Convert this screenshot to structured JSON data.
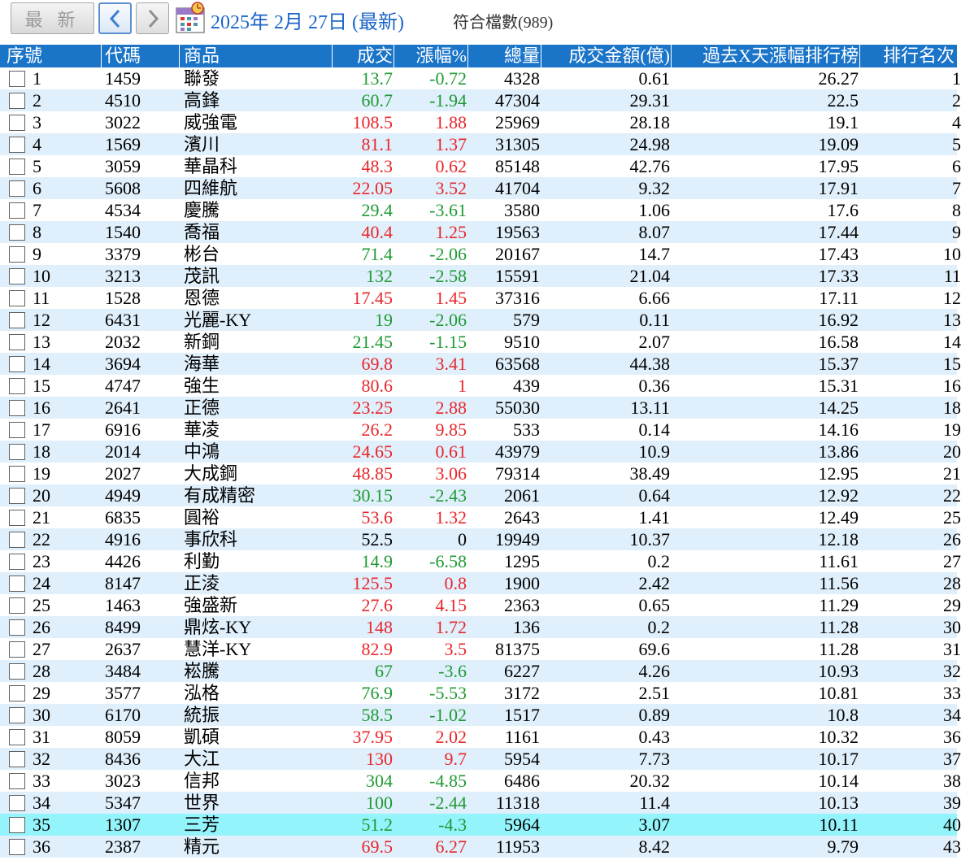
{
  "toolbar": {
    "latest_label": "最 新",
    "prev_icon": "chevron-left-icon",
    "next_icon": "chevron-right-icon",
    "calendar_icon": "calendar-icon",
    "date_label": "2025年  2月 27日 (最新)",
    "match_count_label": "符合檔數(989)"
  },
  "colors": {
    "header_bg": "#1a74c8",
    "up": "#e8262b",
    "down": "#1e9a33",
    "row_alt": "#dfeffb",
    "row_selected": "#93f4fb",
    "date_text": "#1c66c8"
  },
  "table": {
    "headers": [
      "序號",
      "代碼",
      "商品",
      "成交",
      "漲幅%",
      "總量",
      "成交金額(億)",
      "過去X天漲幅排行榜",
      "排行名次"
    ],
    "selected_row_index": 34,
    "rows": [
      {
        "seq": "1",
        "code": "1459",
        "name": "聯發",
        "price": "13.7",
        "change": "-0.72",
        "volume": "4328",
        "amount": "0.61",
        "xday": "26.27",
        "rank": "1",
        "dir": "down"
      },
      {
        "seq": "2",
        "code": "4510",
        "name": "高鋒",
        "price": "60.7",
        "change": "-1.94",
        "volume": "47304",
        "amount": "29.31",
        "xday": "22.5",
        "rank": "2",
        "dir": "down"
      },
      {
        "seq": "3",
        "code": "3022",
        "name": "威強電",
        "price": "108.5",
        "change": "1.88",
        "volume": "25969",
        "amount": "28.18",
        "xday": "19.1",
        "rank": "4",
        "dir": "up"
      },
      {
        "seq": "4",
        "code": "1569",
        "name": "濱川",
        "price": "81.1",
        "change": "1.37",
        "volume": "31305",
        "amount": "24.98",
        "xday": "19.09",
        "rank": "5",
        "dir": "up"
      },
      {
        "seq": "5",
        "code": "3059",
        "name": "華晶科",
        "price": "48.3",
        "change": "0.62",
        "volume": "85148",
        "amount": "42.76",
        "xday": "17.95",
        "rank": "6",
        "dir": "up"
      },
      {
        "seq": "6",
        "code": "5608",
        "name": "四維航",
        "price": "22.05",
        "change": "3.52",
        "volume": "41704",
        "amount": "9.32",
        "xday": "17.91",
        "rank": "7",
        "dir": "up"
      },
      {
        "seq": "7",
        "code": "4534",
        "name": "慶騰",
        "price": "29.4",
        "change": "-3.61",
        "volume": "3580",
        "amount": "1.06",
        "xday": "17.6",
        "rank": "8",
        "dir": "down"
      },
      {
        "seq": "8",
        "code": "1540",
        "name": "喬福",
        "price": "40.4",
        "change": "1.25",
        "volume": "19563",
        "amount": "8.07",
        "xday": "17.44",
        "rank": "9",
        "dir": "up"
      },
      {
        "seq": "9",
        "code": "3379",
        "name": "彬台",
        "price": "71.4",
        "change": "-2.06",
        "volume": "20167",
        "amount": "14.7",
        "xday": "17.43",
        "rank": "10",
        "dir": "down"
      },
      {
        "seq": "10",
        "code": "3213",
        "name": "茂訊",
        "price": "132",
        "change": "-2.58",
        "volume": "15591",
        "amount": "21.04",
        "xday": "17.33",
        "rank": "11",
        "dir": "down"
      },
      {
        "seq": "11",
        "code": "1528",
        "name": "恩德",
        "price": "17.45",
        "change": "1.45",
        "volume": "37316",
        "amount": "6.66",
        "xday": "17.11",
        "rank": "12",
        "dir": "up"
      },
      {
        "seq": "12",
        "code": "6431",
        "name": "光麗-KY",
        "price": "19",
        "change": "-2.06",
        "volume": "579",
        "amount": "0.11",
        "xday": "16.92",
        "rank": "13",
        "dir": "down"
      },
      {
        "seq": "13",
        "code": "2032",
        "name": "新鋼",
        "price": "21.45",
        "change": "-1.15",
        "volume": "9510",
        "amount": "2.07",
        "xday": "16.58",
        "rank": "14",
        "dir": "down"
      },
      {
        "seq": "14",
        "code": "3694",
        "name": "海華",
        "price": "69.8",
        "change": "3.41",
        "volume": "63568",
        "amount": "44.38",
        "xday": "15.37",
        "rank": "15",
        "dir": "up"
      },
      {
        "seq": "15",
        "code": "4747",
        "name": "強生",
        "price": "80.6",
        "change": "1",
        "volume": "439",
        "amount": "0.36",
        "xday": "15.31",
        "rank": "16",
        "dir": "up"
      },
      {
        "seq": "16",
        "code": "2641",
        "name": "正德",
        "price": "23.25",
        "change": "2.88",
        "volume": "55030",
        "amount": "13.11",
        "xday": "14.25",
        "rank": "18",
        "dir": "up"
      },
      {
        "seq": "17",
        "code": "6916",
        "name": "華凌",
        "price": "26.2",
        "change": "9.85",
        "volume": "533",
        "amount": "0.14",
        "xday": "14.16",
        "rank": "19",
        "dir": "up"
      },
      {
        "seq": "18",
        "code": "2014",
        "name": "中鴻",
        "price": "24.65",
        "change": "0.61",
        "volume": "43979",
        "amount": "10.9",
        "xday": "13.86",
        "rank": "20",
        "dir": "up"
      },
      {
        "seq": "19",
        "code": "2027",
        "name": "大成鋼",
        "price": "48.85",
        "change": "3.06",
        "volume": "79314",
        "amount": "38.49",
        "xday": "12.95",
        "rank": "21",
        "dir": "up"
      },
      {
        "seq": "20",
        "code": "4949",
        "name": "有成精密",
        "price": "30.15",
        "change": "-2.43",
        "volume": "2061",
        "amount": "0.64",
        "xday": "12.92",
        "rank": "22",
        "dir": "down"
      },
      {
        "seq": "21",
        "code": "6835",
        "name": "圓裕",
        "price": "53.6",
        "change": "1.32",
        "volume": "2643",
        "amount": "1.41",
        "xday": "12.49",
        "rank": "25",
        "dir": "up"
      },
      {
        "seq": "22",
        "code": "4916",
        "name": "事欣科",
        "price": "52.5",
        "change": "0",
        "volume": "19949",
        "amount": "10.37",
        "xday": "12.18",
        "rank": "26",
        "dir": "flat"
      },
      {
        "seq": "23",
        "code": "4426",
        "name": "利勤",
        "price": "14.9",
        "change": "-6.58",
        "volume": "1295",
        "amount": "0.2",
        "xday": "11.61",
        "rank": "27",
        "dir": "down"
      },
      {
        "seq": "24",
        "code": "8147",
        "name": "正淩",
        "price": "125.5",
        "change": "0.8",
        "volume": "1900",
        "amount": "2.42",
        "xday": "11.56",
        "rank": "28",
        "dir": "up"
      },
      {
        "seq": "25",
        "code": "1463",
        "name": "強盛新",
        "price": "27.6",
        "change": "4.15",
        "volume": "2363",
        "amount": "0.65",
        "xday": "11.29",
        "rank": "29",
        "dir": "up"
      },
      {
        "seq": "26",
        "code": "8499",
        "name": "鼎炫-KY",
        "price": "148",
        "change": "1.72",
        "volume": "136",
        "amount": "0.2",
        "xday": "11.28",
        "rank": "30",
        "dir": "up"
      },
      {
        "seq": "27",
        "code": "2637",
        "name": "慧洋-KY",
        "price": "82.9",
        "change": "3.5",
        "volume": "81375",
        "amount": "69.6",
        "xday": "11.28",
        "rank": "31",
        "dir": "up"
      },
      {
        "seq": "28",
        "code": "3484",
        "name": "崧騰",
        "price": "67",
        "change": "-3.6",
        "volume": "6227",
        "amount": "4.26",
        "xday": "10.93",
        "rank": "32",
        "dir": "down"
      },
      {
        "seq": "29",
        "code": "3577",
        "name": "泓格",
        "price": "76.9",
        "change": "-5.53",
        "volume": "3172",
        "amount": "2.51",
        "xday": "10.81",
        "rank": "33",
        "dir": "down"
      },
      {
        "seq": "30",
        "code": "6170",
        "name": "統振",
        "price": "58.5",
        "change": "-1.02",
        "volume": "1517",
        "amount": "0.89",
        "xday": "10.8",
        "rank": "34",
        "dir": "down"
      },
      {
        "seq": "31",
        "code": "8059",
        "name": "凱碩",
        "price": "37.95",
        "change": "2.02",
        "volume": "1161",
        "amount": "0.43",
        "xday": "10.32",
        "rank": "36",
        "dir": "up"
      },
      {
        "seq": "32",
        "code": "8436",
        "name": "大江",
        "price": "130",
        "change": "9.7",
        "volume": "5954",
        "amount": "7.73",
        "xday": "10.17",
        "rank": "37",
        "dir": "up"
      },
      {
        "seq": "33",
        "code": "3023",
        "name": "信邦",
        "price": "304",
        "change": "-4.85",
        "volume": "6486",
        "amount": "20.32",
        "xday": "10.14",
        "rank": "38",
        "dir": "down"
      },
      {
        "seq": "34",
        "code": "5347",
        "name": "世界",
        "price": "100",
        "change": "-2.44",
        "volume": "11318",
        "amount": "11.4",
        "xday": "10.13",
        "rank": "39",
        "dir": "down"
      },
      {
        "seq": "35",
        "code": "1307",
        "name": "三芳",
        "price": "51.2",
        "change": "-4.3",
        "volume": "5964",
        "amount": "3.07",
        "xday": "10.11",
        "rank": "40",
        "dir": "down"
      },
      {
        "seq": "36",
        "code": "2387",
        "name": "精元",
        "price": "69.5",
        "change": "6.27",
        "volume": "11953",
        "amount": "8.42",
        "xday": "9.79",
        "rank": "43",
        "dir": "up"
      }
    ]
  }
}
